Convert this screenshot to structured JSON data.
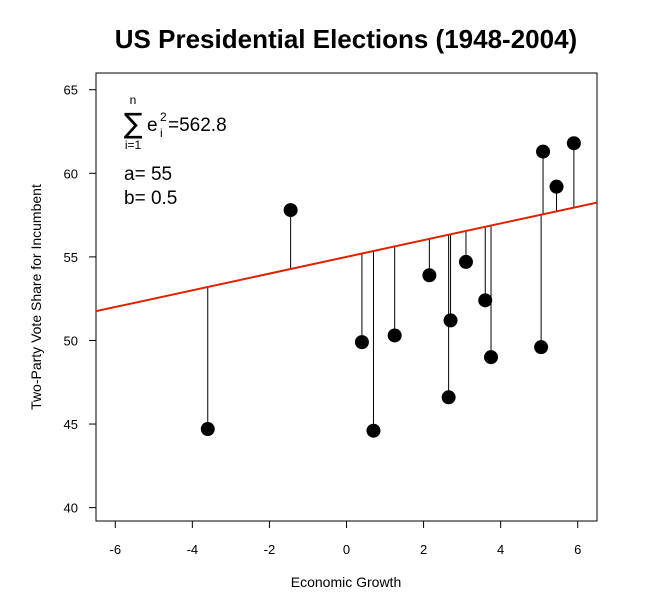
{
  "chart_data": {
    "type": "scatter",
    "title": "US Presidential Elections (1948-2004)",
    "xlabel": "Economic Growth",
    "ylabel": "Two-Party Vote Share for Incumbent",
    "xlim": [
      -6.5,
      6.5
    ],
    "ylim": [
      39.2,
      66.0
    ],
    "x_ticks": [
      -6,
      -4,
      -2,
      0,
      2,
      4,
      6
    ],
    "y_ticks": [
      40,
      45,
      50,
      55,
      60,
      65
    ],
    "x_tick_labels": [
      "-6",
      "-4",
      "-2",
      "0",
      "2",
      "4",
      "6"
    ],
    "y_tick_labels": [
      "40",
      "45",
      "50",
      "55",
      "60",
      "65"
    ],
    "grid": false,
    "points": [
      {
        "x": -3.6,
        "y": 44.7
      },
      {
        "x": -1.45,
        "y": 57.8
      },
      {
        "x": 0.4,
        "y": 49.9
      },
      {
        "x": 0.7,
        "y": 44.6
      },
      {
        "x": 1.25,
        "y": 50.3
      },
      {
        "x": 2.15,
        "y": 53.9
      },
      {
        "x": 2.65,
        "y": 46.6
      },
      {
        "x": 2.7,
        "y": 51.2
      },
      {
        "x": 3.1,
        "y": 54.7
      },
      {
        "x": 3.6,
        "y": 52.4
      },
      {
        "x": 3.75,
        "y": 49.0
      },
      {
        "x": 5.05,
        "y": 49.6
      },
      {
        "x": 5.1,
        "y": 61.3
      },
      {
        "x": 5.45,
        "y": 59.2
      },
      {
        "x": 5.9,
        "y": 61.8
      }
    ],
    "fit_line": {
      "intercept": 55,
      "slope": 0.5,
      "color": "#dd2200"
    },
    "point_color": "#000000",
    "residual_line_color": "#000000",
    "annotation": {
      "sum_symbol": "∑",
      "sum_upper": "n",
      "sum_lower": "i=1",
      "term_base": "e",
      "term_superscript": "2",
      "term_subscript": "i",
      "term_value": "=562.8",
      "a_text": "a= 55",
      "b_text": "b= 0.5"
    }
  }
}
